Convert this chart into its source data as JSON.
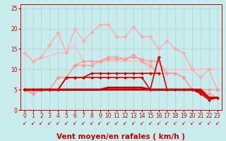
{
  "background_color": "#c8ecec",
  "grid_color": "#b0d8d8",
  "xlabel": "Vent moyen/en rafales ( km/h )",
  "xlim": [
    -0.5,
    23.5
  ],
  "ylim": [
    0,
    26
  ],
  "yticks": [
    0,
    5,
    10,
    15,
    20,
    25
  ],
  "xticks": [
    0,
    1,
    2,
    3,
    4,
    5,
    6,
    7,
    8,
    9,
    10,
    11,
    12,
    13,
    14,
    15,
    16,
    17,
    18,
    19,
    20,
    21,
    22,
    23
  ],
  "series": [
    {
      "x": [
        0,
        1,
        2,
        3,
        4,
        5,
        6,
        7,
        8,
        9,
        10,
        11,
        12,
        13,
        14,
        15,
        16,
        17,
        18,
        19,
        20,
        21,
        22,
        23
      ],
      "y": [
        14,
        12,
        13,
        16,
        19,
        14,
        20,
        17,
        19,
        21,
        21,
        18,
        18,
        20.5,
        18,
        18,
        15,
        17,
        15,
        14,
        10,
        8,
        10,
        5
      ],
      "color": "#ffaaaa",
      "marker": "D",
      "markersize": 2.5,
      "linewidth": 1.0,
      "linestyle": "-",
      "zorder": 3
    },
    {
      "x": [
        0,
        1,
        4,
        5,
        6,
        7,
        8,
        9,
        10,
        11,
        12,
        13,
        14,
        15,
        16,
        17,
        18,
        19,
        20,
        21,
        22,
        23
      ],
      "y": [
        14,
        12,
        14,
        14,
        16,
        12,
        12,
        12,
        12,
        12,
        12,
        12,
        12,
        10,
        10,
        10,
        10,
        10,
        10,
        10,
        10,
        10
      ],
      "color": "#ffbbbb",
      "marker": null,
      "linewidth": 1.2,
      "linestyle": "-",
      "zorder": 2
    },
    {
      "x": [
        0,
        1,
        2,
        3,
        4,
        5,
        6,
        7,
        8,
        9,
        10,
        11,
        12,
        13,
        14,
        15,
        16,
        17,
        18,
        19,
        20,
        21,
        22,
        23
      ],
      "y": [
        5,
        4,
        5,
        5,
        8,
        8,
        11,
        12,
        12,
        12,
        12.5,
        12.5,
        12.5,
        13,
        12.5,
        12,
        12,
        9,
        9,
        8,
        5,
        5,
        5,
        5
      ],
      "color": "#ff9999",
      "marker": "D",
      "markersize": 2.5,
      "linewidth": 1.0,
      "linestyle": "-",
      "zorder": 3
    },
    {
      "x": [
        0,
        1,
        2,
        3,
        4,
        5,
        6,
        7,
        8,
        9,
        10,
        11,
        12,
        13,
        14,
        15,
        16,
        17,
        18,
        19,
        20,
        21,
        22,
        23
      ],
      "y": [
        5,
        4,
        5,
        5,
        8,
        8,
        11,
        11,
        11,
        12,
        13,
        13,
        12.5,
        13.5,
        12,
        11,
        9,
        9,
        9,
        8,
        5,
        5,
        4,
        3
      ],
      "color": "#ff9999",
      "marker": "D",
      "markersize": 2.5,
      "linewidth": 1.0,
      "linestyle": "-",
      "zorder": 3
    },
    {
      "x": [
        0,
        1,
        2,
        3,
        4,
        5,
        6,
        7,
        8,
        9,
        10,
        11,
        12,
        13,
        14,
        15,
        16,
        17,
        18,
        19,
        20,
        21,
        22,
        23
      ],
      "y": [
        5,
        5,
        5,
        5,
        5,
        5,
        5,
        5,
        5,
        5,
        5.5,
        5.5,
        5.5,
        5.5,
        5.5,
        5,
        5,
        5,
        5,
        5,
        5,
        4.5,
        3,
        3
      ],
      "color": "#cc0000",
      "marker": null,
      "linewidth": 2.0,
      "linestyle": "-",
      "zorder": 4
    },
    {
      "x": [
        0,
        1,
        2,
        3,
        4,
        5,
        6,
        7,
        8,
        9,
        10,
        11,
        12,
        13,
        14,
        15,
        16,
        17,
        18,
        19,
        20,
        21,
        22,
        23
      ],
      "y": [
        5,
        5,
        5,
        5,
        5,
        5,
        5,
        5,
        5,
        5,
        5,
        5,
        5,
        5,
        5,
        5,
        5,
        5,
        5,
        5,
        5,
        5,
        3,
        3
      ],
      "color": "#cc0000",
      "marker": null,
      "linewidth": 2.0,
      "linestyle": "-",
      "zorder": 4
    },
    {
      "x": [
        0,
        1,
        2,
        3,
        4,
        5,
        6,
        7,
        8,
        9,
        10,
        11,
        12,
        13,
        14,
        15,
        16,
        17,
        18,
        19,
        20,
        21,
        22,
        23
      ],
      "y": [
        5,
        5,
        5,
        5,
        5,
        8,
        8,
        8,
        8,
        8,
        8,
        8,
        8,
        8,
        8,
        5,
        13,
        5,
        5,
        5,
        5,
        4,
        2.5,
        3
      ],
      "color": "#dd0000",
      "marker": "D",
      "markersize": 2.0,
      "linewidth": 1.2,
      "linestyle": "-",
      "zorder": 4
    },
    {
      "x": [
        0,
        1,
        2,
        3,
        4,
        5,
        6,
        7,
        8,
        9,
        10,
        11,
        12,
        13,
        14,
        15,
        16
      ],
      "y": [
        5,
        5,
        5,
        5,
        5,
        8,
        8,
        8,
        9,
        9,
        9,
        9,
        9,
        9,
        9,
        9,
        9
      ],
      "color": "#dd0000",
      "marker": "D",
      "markersize": 2.0,
      "linewidth": 1.2,
      "linestyle": "-",
      "zorder": 4
    }
  ],
  "xlabel_color": "#cc0000",
  "xlabel_fontsize": 7.5,
  "tick_color": "#cc0000",
  "tick_fontsize": 5.5,
  "arrow_char": "↙"
}
